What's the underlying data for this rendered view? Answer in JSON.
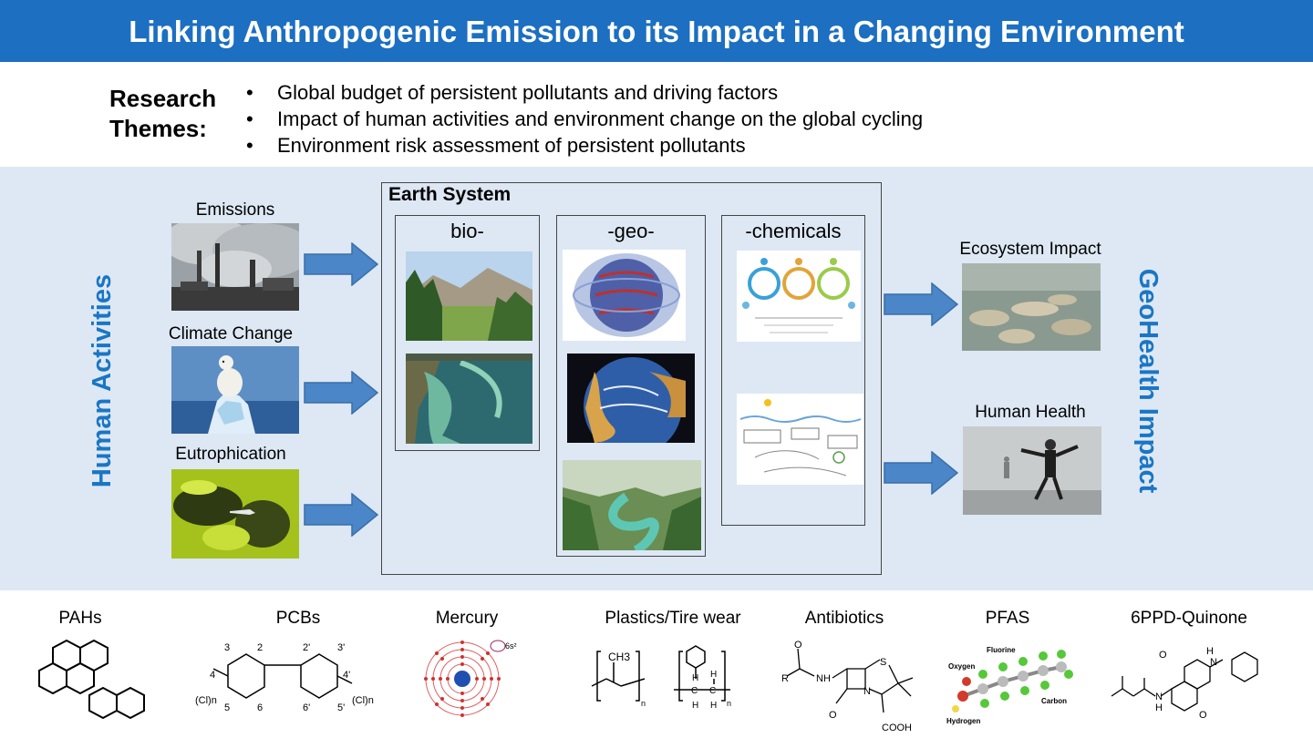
{
  "header": {
    "title": "Linking Anthropogenic Emission to its Impact in a Changing Environment"
  },
  "research": {
    "label": "Research Themes:",
    "themes": [
      "Global budget of persistent pollutants and driving factors",
      "Impact of human activities and environment change on the global cycling",
      "Environment risk assessment of persistent pollutants"
    ]
  },
  "left": {
    "vertical_label": "Human Activities",
    "items": [
      {
        "label": "Emissions",
        "image": "smokestacks-photo"
      },
      {
        "label": "Climate Change",
        "image": "polar-bear-on-ice-photo"
      },
      {
        "label": "Eutrophication",
        "image": "algal-bloom-photo"
      }
    ]
  },
  "earth_system": {
    "title": "Earth System",
    "columns": [
      {
        "label": "bio-",
        "images": [
          "mountain-forest-photo",
          "coastal-algae-satellite-photo"
        ]
      },
      {
        "label": "-geo-",
        "images": [
          "atmospheric-circulation-globe",
          "ocean-currents-globe",
          "river-canyon-photo"
        ]
      },
      {
        "label": "-chemicals",
        "images": [
          "chemical-cycle-diagram",
          "biogeochemical-process-diagram"
        ]
      }
    ]
  },
  "right": {
    "vertical_label": "GeoHealth Impact",
    "items": [
      {
        "label": "Ecosystem Impact",
        "image": "dead-fish-photo"
      },
      {
        "label": "Human Health",
        "image": "smog-person-photo"
      }
    ]
  },
  "pollutants": [
    {
      "label": "PAHs"
    },
    {
      "label": "PCBs",
      "structure_text": [
        "3",
        "2",
        "2'",
        "3'",
        "4",
        "4'",
        "(Cl)n",
        "(Cl)n",
        "5",
        "6",
        "6'",
        "5'"
      ]
    },
    {
      "label": "Mercury",
      "structure_text": [
        "6s²"
      ]
    },
    {
      "label": "Plastics/Tire wear",
      "structure_text": [
        "CH3",
        "n",
        "n",
        "H",
        "H",
        "C",
        "C",
        "H",
        "H"
      ]
    },
    {
      "label": "Antibiotics",
      "structure_text": [
        "O",
        "R",
        "NH",
        "S",
        "N",
        "O",
        "COOH"
      ]
    },
    {
      "label": "PFAS",
      "structure_text": [
        "Fluorine",
        "Oxygen",
        "Hydrogen",
        "Carbon"
      ]
    },
    {
      "label": "6PPD-Quinone",
      "structure_text": [
        "O",
        "H",
        "N",
        "N",
        "H",
        "O"
      ]
    }
  ],
  "colors": {
    "header_bg": "#1c6fc1",
    "panel_bg": "#dde8f4",
    "accent_text": "#1a76c4",
    "arrow_fill": "#4a86c8",
    "arrow_stroke": "#3a6fa8"
  }
}
